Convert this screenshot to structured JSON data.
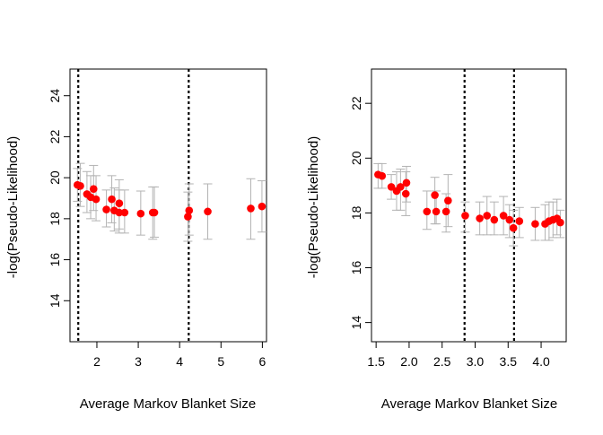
{
  "chart_data": [
    {
      "type": "scatter",
      "xlabel": "Average Markov Blanket Size",
      "ylabel": "-log(Pseudo-Likelihood)",
      "xlim": [
        1.35,
        6.1
      ],
      "ylim": [
        12.0,
        25.3
      ],
      "xticks": [
        2,
        3,
        4,
        5,
        6
      ],
      "x_tick_labels": [
        "2",
        "3",
        "4",
        "5",
        "6"
      ],
      "yticks": [
        14,
        16,
        18,
        20,
        22,
        24
      ],
      "y_tick_labels": [
        "14",
        "16",
        "18",
        "20",
        "22",
        "24"
      ],
      "vlines": [
        1.55,
        4.22
      ],
      "grid": false,
      "point_color": "#ff0000",
      "errorbar_color": "#b3b3b3",
      "points": [
        {
          "x": 1.53,
          "y": 19.65,
          "lo": 18.85,
          "hi": 20.45
        },
        {
          "x": 1.6,
          "y": 19.6,
          "lo": 18.6,
          "hi": 20.7
        },
        {
          "x": 1.76,
          "y": 19.2,
          "lo": 18.3,
          "hi": 20.3
        },
        {
          "x": 1.85,
          "y": 19.05,
          "lo": 18.0,
          "hi": 20.1
        },
        {
          "x": 1.92,
          "y": 19.45,
          "lo": 18.4,
          "hi": 20.6
        },
        {
          "x": 1.98,
          "y": 18.95,
          "lo": 17.9,
          "hi": 20.1
        },
        {
          "x": 2.23,
          "y": 18.45,
          "lo": 17.6,
          "hi": 19.4
        },
        {
          "x": 2.36,
          "y": 18.95,
          "lo": 17.8,
          "hi": 20.1
        },
        {
          "x": 2.42,
          "y": 18.4,
          "lo": 17.4,
          "hi": 19.5
        },
        {
          "x": 2.54,
          "y": 18.75,
          "lo": 17.5,
          "hi": 19.9
        },
        {
          "x": 2.54,
          "y": 18.3,
          "lo": 17.3,
          "hi": 19.4
        },
        {
          "x": 2.67,
          "y": 18.3,
          "lo": 17.3,
          "hi": 19.4
        },
        {
          "x": 3.06,
          "y": 18.25,
          "lo": 17.2,
          "hi": 19.35
        },
        {
          "x": 3.35,
          "y": 18.3,
          "lo": 17.0,
          "hi": 19.55
        },
        {
          "x": 3.39,
          "y": 18.3,
          "lo": 17.1,
          "hi": 19.55
        },
        {
          "x": 4.2,
          "y": 18.1,
          "lo": 16.9,
          "hi": 19.3
        },
        {
          "x": 4.23,
          "y": 18.4,
          "lo": 17.2,
          "hi": 19.7
        },
        {
          "x": 4.68,
          "y": 18.35,
          "lo": 17.0,
          "hi": 19.7
        },
        {
          "x": 5.72,
          "y": 18.5,
          "lo": 17.0,
          "hi": 19.95
        },
        {
          "x": 5.99,
          "y": 18.6,
          "lo": 17.35,
          "hi": 19.85
        }
      ]
    },
    {
      "type": "scatter",
      "xlabel": "Average Markov Blanket Size",
      "ylabel": "-log(Pseudo-Likelihood)",
      "xlim": [
        1.43,
        4.38
      ],
      "ylim": [
        13.3,
        23.25
      ],
      "xticks": [
        1.5,
        2.0,
        2.5,
        3.0,
        3.5,
        4.0
      ],
      "x_tick_labels": [
        "1.5",
        "2.0",
        "2.5",
        "3.0",
        "3.5",
        "4.0"
      ],
      "yticks": [
        14,
        16,
        18,
        20,
        22
      ],
      "y_tick_labels": [
        "14",
        "16",
        "18",
        "20",
        "22"
      ],
      "vlines": [
        2.84,
        3.59
      ],
      "grid": false,
      "point_color": "#ff0000",
      "errorbar_color": "#b3b3b3",
      "points": [
        {
          "x": 1.53,
          "y": 19.4,
          "lo": 18.9,
          "hi": 19.8
        },
        {
          "x": 1.59,
          "y": 19.35,
          "lo": 18.9,
          "hi": 19.8
        },
        {
          "x": 1.73,
          "y": 18.95,
          "lo": 18.5,
          "hi": 19.4
        },
        {
          "x": 1.81,
          "y": 18.8,
          "lo": 18.1,
          "hi": 19.5
        },
        {
          "x": 1.87,
          "y": 18.95,
          "lo": 18.1,
          "hi": 19.6
        },
        {
          "x": 1.95,
          "y": 18.7,
          "lo": 17.9,
          "hi": 19.5
        },
        {
          "x": 1.96,
          "y": 19.1,
          "lo": 18.4,
          "hi": 19.7
        },
        {
          "x": 2.27,
          "y": 18.05,
          "lo": 17.4,
          "hi": 18.8
        },
        {
          "x": 2.39,
          "y": 18.65,
          "lo": 17.6,
          "hi": 19.3
        },
        {
          "x": 2.41,
          "y": 18.05,
          "lo": 17.6,
          "hi": 18.8
        },
        {
          "x": 2.56,
          "y": 18.05,
          "lo": 17.3,
          "hi": 18.7
        },
        {
          "x": 2.59,
          "y": 18.45,
          "lo": 17.5,
          "hi": 19.4
        },
        {
          "x": 2.85,
          "y": 17.9,
          "lo": 17.3,
          "hi": 18.4
        },
        {
          "x": 3.07,
          "y": 17.8,
          "lo": 17.2,
          "hi": 18.4
        },
        {
          "x": 3.18,
          "y": 17.9,
          "lo": 17.2,
          "hi": 18.6
        },
        {
          "x": 3.29,
          "y": 17.75,
          "lo": 17.2,
          "hi": 18.4
        },
        {
          "x": 3.43,
          "y": 17.9,
          "lo": 17.2,
          "hi": 18.6
        },
        {
          "x": 3.52,
          "y": 17.75,
          "lo": 17.1,
          "hi": 18.3
        },
        {
          "x": 3.58,
          "y": 17.45,
          "lo": 16.8,
          "hi": 18.1
        },
        {
          "x": 3.67,
          "y": 17.7,
          "lo": 17.1,
          "hi": 18.2
        },
        {
          "x": 3.91,
          "y": 17.6,
          "lo": 17.0,
          "hi": 18.2
        },
        {
          "x": 4.06,
          "y": 17.6,
          "lo": 17.0,
          "hi": 18.3
        },
        {
          "x": 4.12,
          "y": 17.7,
          "lo": 17.0,
          "hi": 18.4
        },
        {
          "x": 4.18,
          "y": 17.75,
          "lo": 17.1,
          "hi": 18.4
        },
        {
          "x": 4.24,
          "y": 17.8,
          "lo": 17.2,
          "hi": 18.5
        },
        {
          "x": 4.29,
          "y": 17.65,
          "lo": 17.1,
          "hi": 18.1
        }
      ]
    }
  ]
}
